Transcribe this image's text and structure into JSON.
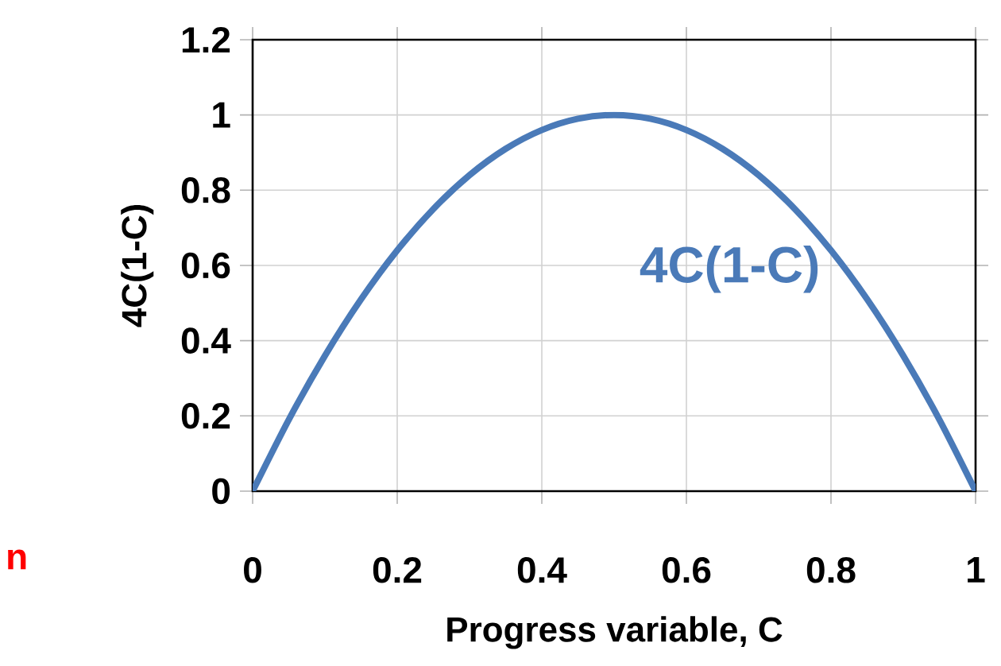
{
  "chart_data": {
    "type": "line",
    "xlabel": "Progress variable, C",
    "ylabel": "4C(1-C)",
    "x": [
      0,
      0.05,
      0.1,
      0.15,
      0.2,
      0.25,
      0.3,
      0.35,
      0.4,
      0.45,
      0.5,
      0.55,
      0.6,
      0.65,
      0.7,
      0.75,
      0.8,
      0.85,
      0.9,
      0.95,
      1
    ],
    "series": [
      {
        "name": "4C(1-C)",
        "color": "#4a7ab8",
        "values": [
          0,
          0.19,
          0.36,
          0.51,
          0.64,
          0.75,
          0.84,
          0.91,
          0.96,
          0.99,
          1,
          0.99,
          0.96,
          0.91,
          0.84,
          0.75,
          0.64,
          0.51,
          0.36,
          0.19,
          0
        ]
      }
    ],
    "xlim": [
      0,
      1
    ],
    "ylim": [
      0,
      1.2
    ],
    "xticks": [
      0,
      0.2,
      0.4,
      0.6,
      0.8,
      1
    ],
    "yticks": [
      0,
      0.2,
      0.4,
      0.6,
      0.8,
      1,
      1.2
    ],
    "grid": true,
    "marker": "none",
    "line_style": "solid",
    "annotations": [
      "n"
    ]
  }
}
